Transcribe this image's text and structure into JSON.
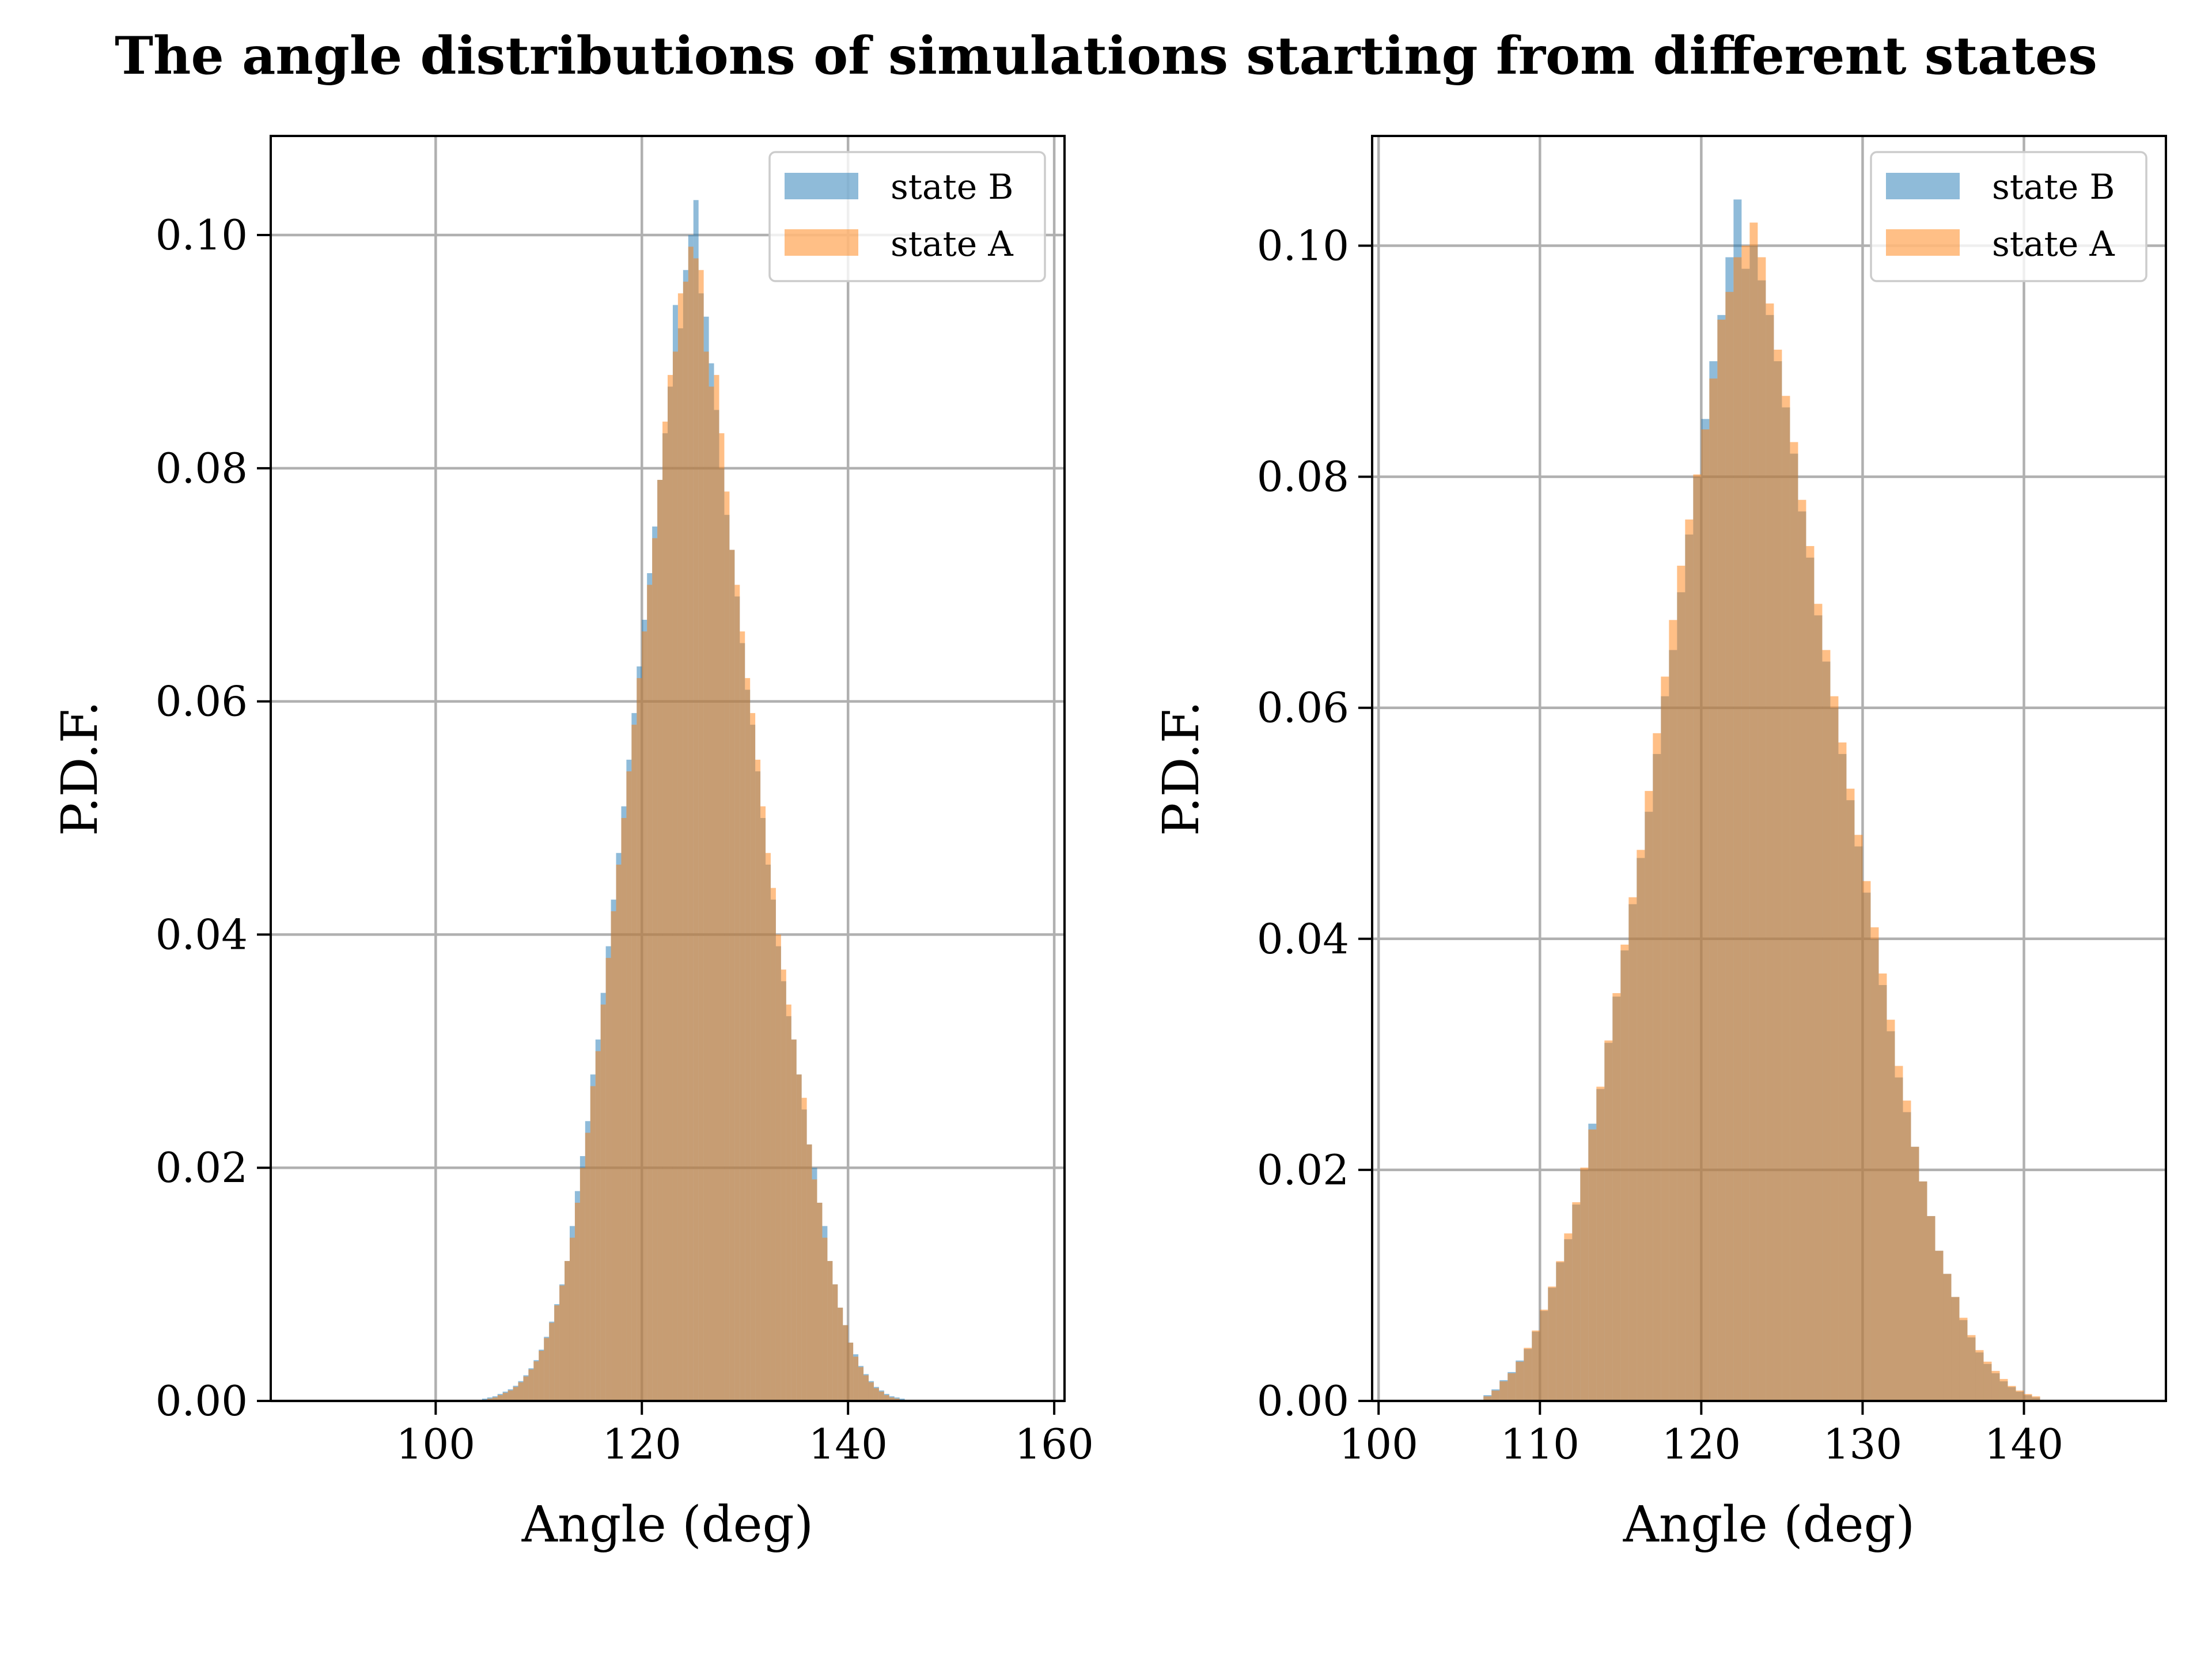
{
  "title": "The angle distributions of simulations starting from different states",
  "colors": {
    "state_b": "#1f77b4",
    "state_a": "#ff7f0e",
    "bar_alpha": 0.5,
    "grid": "#b0b0b0"
  },
  "chart_data": [
    {
      "type": "bar",
      "panel": "left",
      "xlabel": "Angle (deg)",
      "ylabel": "P.D.F.",
      "xlim": [
        84,
        161
      ],
      "ylim": [
        0,
        0.1085
      ],
      "xticks": [
        100,
        120,
        140,
        160
      ],
      "yticks": [
        0,
        0.02,
        0.04,
        0.06,
        0.08,
        0.1
      ],
      "ytick_labels": [
        "0.00",
        "0.02",
        "0.04",
        "0.06",
        "0.08",
        "0.10"
      ],
      "grid": true,
      "legend_position": "upper right",
      "legend": [
        "state B",
        "state A"
      ],
      "series": [
        {
          "name": "state B",
          "color": "#1f77b4",
          "bin_start": 104.5,
          "bin_width": 0.5,
          "values": [
            0.0002,
            0.0003,
            0.0004,
            0.0006,
            0.0008,
            0.001,
            0.0013,
            0.0017,
            0.0022,
            0.0028,
            0.0035,
            0.0044,
            0.0055,
            0.0068,
            0.0083,
            0.01,
            0.012,
            0.015,
            0.018,
            0.021,
            0.024,
            0.028,
            0.031,
            0.035,
            0.039,
            0.043,
            0.047,
            0.051,
            0.055,
            0.059,
            0.063,
            0.067,
            0.071,
            0.075,
            0.079,
            0.083,
            0.087,
            0.094,
            0.092,
            0.097,
            0.1,
            0.103,
            0.095,
            0.093,
            0.089,
            0.085,
            0.08,
            0.076,
            0.073,
            0.069,
            0.065,
            0.061,
            0.058,
            0.054,
            0.05,
            0.046,
            0.043,
            0.039,
            0.036,
            0.033,
            0.031,
            0.028,
            0.025,
            0.022,
            0.02,
            0.017,
            0.015,
            0.012,
            0.01,
            0.008,
            0.0065,
            0.005,
            0.004,
            0.003,
            0.0023,
            0.0017,
            0.0012,
            0.0009,
            0.0006,
            0.0004,
            0.0003,
            0.0002
          ]
        },
        {
          "name": "state A",
          "color": "#ff7f0e",
          "bin_start": 104.5,
          "bin_width": 0.5,
          "values": [
            0.0001,
            0.0002,
            0.0003,
            0.0005,
            0.0007,
            0.0009,
            0.0012,
            0.0016,
            0.0021,
            0.0027,
            0.0034,
            0.0043,
            0.0054,
            0.0067,
            0.0082,
            0.0099,
            0.012,
            0.014,
            0.017,
            0.02,
            0.023,
            0.027,
            0.03,
            0.034,
            0.038,
            0.042,
            0.046,
            0.05,
            0.054,
            0.058,
            0.062,
            0.066,
            0.07,
            0.074,
            0.079,
            0.084,
            0.088,
            0.09,
            0.095,
            0.096,
            0.099,
            0.098,
            0.097,
            0.09,
            0.087,
            0.088,
            0.083,
            0.078,
            0.073,
            0.07,
            0.066,
            0.062,
            0.059,
            0.055,
            0.051,
            0.047,
            0.044,
            0.04,
            0.037,
            0.034,
            0.031,
            0.028,
            0.026,
            0.022,
            0.019,
            0.017,
            0.014,
            0.012,
            0.01,
            0.008,
            0.0065,
            0.005,
            0.0038,
            0.0029,
            0.0022,
            0.0016,
            0.0011,
            0.0008,
            0.0005,
            0.0003,
            0.0002,
            0.0001
          ]
        }
      ]
    },
    {
      "type": "bar",
      "panel": "right",
      "xlabel": "Angle (deg)",
      "ylabel": "P.D.F.",
      "xlim": [
        99.6,
        148.8
      ],
      "ylim": [
        0,
        0.1095
      ],
      "xticks": [
        100,
        110,
        120,
        130,
        140
      ],
      "yticks": [
        0,
        0.02,
        0.04,
        0.06,
        0.08,
        0.1
      ],
      "ytick_labels": [
        "0.00",
        "0.02",
        "0.04",
        "0.06",
        "0.08",
        "0.10"
      ],
      "grid": true,
      "legend_position": "upper right",
      "legend": [
        "state B",
        "state A"
      ],
      "series": [
        {
          "name": "state B",
          "color": "#1f77b4",
          "bin_start": 106.5,
          "bin_width": 0.5,
          "values": [
            0.0005,
            0.001,
            0.0018,
            0.0025,
            0.0035,
            0.0045,
            0.006,
            0.0078,
            0.0098,
            0.012,
            0.014,
            0.017,
            0.02,
            0.024,
            0.027,
            0.031,
            0.035,
            0.039,
            0.043,
            0.047,
            0.051,
            0.056,
            0.061,
            0.065,
            0.07,
            0.075,
            0.08,
            0.085,
            0.09,
            0.094,
            0.099,
            0.104,
            0.098,
            0.1,
            0.097,
            0.094,
            0.09,
            0.086,
            0.082,
            0.077,
            0.073,
            0.068,
            0.064,
            0.06,
            0.056,
            0.052,
            0.048,
            0.044,
            0.04,
            0.036,
            0.032,
            0.028,
            0.025,
            0.022,
            0.019,
            0.016,
            0.013,
            0.011,
            0.009,
            0.007,
            0.0055,
            0.0042,
            0.0032,
            0.0024,
            0.0017,
            0.0012,
            0.0008,
            0.0005,
            0.0003
          ]
        },
        {
          "name": "state A",
          "color": "#ff7f0e",
          "bin_start": 106.5,
          "bin_width": 0.5,
          "values": [
            0.0004,
            0.0009,
            0.0017,
            0.0024,
            0.0034,
            0.0046,
            0.0061,
            0.0079,
            0.0099,
            0.0121,
            0.0145,
            0.0172,
            0.0202,
            0.0235,
            0.0272,
            0.0312,
            0.0353,
            0.0395,
            0.0436,
            0.0477,
            0.0528,
            0.0578,
            0.0627,
            0.0676,
            0.0723,
            0.0763,
            0.0802,
            0.0841,
            0.0885,
            0.0936,
            0.096,
            0.099,
            0.1,
            0.102,
            0.099,
            0.095,
            0.091,
            0.087,
            0.083,
            0.078,
            0.074,
            0.069,
            0.065,
            0.061,
            0.057,
            0.053,
            0.049,
            0.045,
            0.041,
            0.037,
            0.033,
            0.029,
            0.026,
            0.022,
            0.019,
            0.016,
            0.013,
            0.011,
            0.009,
            0.0072,
            0.0057,
            0.0044,
            0.0034,
            0.0026,
            0.0019,
            0.0013,
            0.0009,
            0.0006,
            0.0004
          ]
        }
      ]
    }
  ]
}
